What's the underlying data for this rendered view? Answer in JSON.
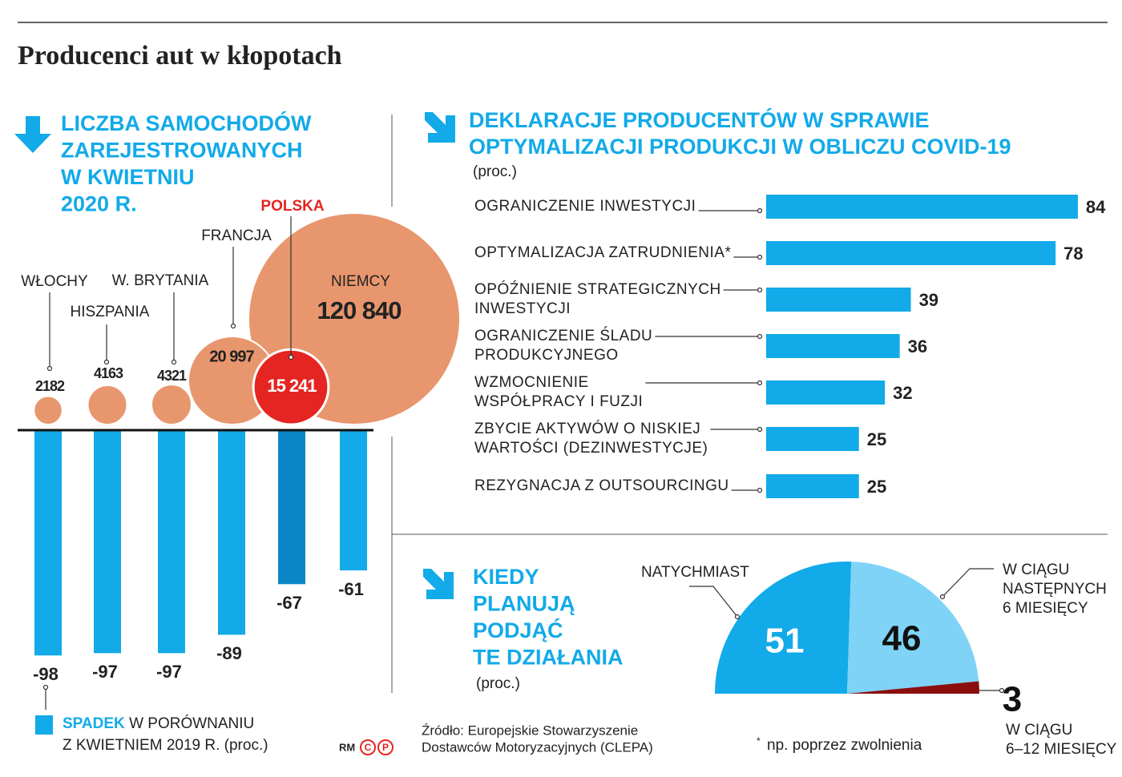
{
  "title": "Producenci aut w kłopotach",
  "source": [
    "Źródło: Europejskie Stowarzyszenie",
    "Dostawców Motoryzacyjnych (CLEPA)"
  ],
  "note": {
    "mark": "*",
    "text": "np. poprzez zwolnienia"
  },
  "logo": {
    "text": "RM",
    "marks": [
      "C",
      "P"
    ]
  },
  "chart_data": [
    {
      "type": "bubble-bar",
      "title": [
        "LICZBA SAMOCHODÓW",
        "ZAREJESTROWANYCH",
        "W KWIETNIU",
        "2020 R."
      ],
      "categories": [
        "WŁOCHY",
        "HISZPANIA",
        "W. BRYTANIA",
        "FRANCJA",
        "POLSKA",
        "NIEMCY"
      ],
      "sizes": [
        2182,
        4163,
        4321,
        20997,
        15241,
        120840
      ],
      "size_labels": [
        "2182",
        "4163",
        "4321",
        "20 997",
        "15 241",
        "120 840"
      ],
      "values": [
        -98,
        -97,
        -97,
        -89,
        -67,
        -61
      ],
      "colors": {
        "bubble": "#e8966e",
        "bubble_highlight": "#e52521",
        "bar": "#12aae8",
        "bar_highlight": "#0a86c6"
      },
      "highlight": "POLSKA",
      "legend": {
        "name": "SPADEK",
        "text": [
          "W PORÓWNANIU",
          "Z KWIETNIEM 2019 R."
        ],
        "unit": "(proc.)"
      }
    },
    {
      "type": "hbar",
      "title": [
        "DEKLARACJE PRODUCENTÓW W SPRAWIE",
        "OPTYMALIZACJI PRODUKCJI W OBLICZU COVID-19"
      ],
      "unit": "(proc.)",
      "categories": [
        [
          "OGRANICZENIE INWESTYCJI"
        ],
        [
          "OPTYMALIZACJA ZATRUDNIENIA*"
        ],
        [
          "OPÓŹNIENIE STRATEGICZNYCH",
          "INWESTYCJI"
        ],
        [
          "OGRANICZENIE ŚLADU",
          "PRODUKCYJNEGO"
        ],
        [
          "WZMOCNIENIE",
          "WSPÓŁPRACY I FUZJI"
        ],
        [
          "ZBYCIE AKTYWÓW O NISKIEJ",
          "WARTOŚCI (DEZINWESTYCJE)"
        ],
        [
          "REZYGNACJA Z OUTSOURCINGU"
        ]
      ],
      "values": [
        84,
        78,
        39,
        36,
        32,
        25,
        25
      ],
      "color": "#12aae8"
    },
    {
      "type": "semi-pie",
      "title": [
        "KIEDY",
        "PLANUJĄ",
        "PODJĄĆ",
        "TE DZIAŁANIA"
      ],
      "unit": "(proc.)",
      "series": [
        {
          "name": [
            "NATYCHMIAST"
          ],
          "value": 51,
          "color": "#12aae8"
        },
        {
          "name": [
            "W CIĄGU",
            "NASTĘPNYCH",
            "6 MIESIĘCY"
          ],
          "value": 46,
          "color": "#7fd3f7"
        },
        {
          "name": [
            "W CIĄGU",
            "6–12 MIESIĘCY"
          ],
          "value": 3,
          "color": "#8a0e0e"
        }
      ]
    }
  ]
}
